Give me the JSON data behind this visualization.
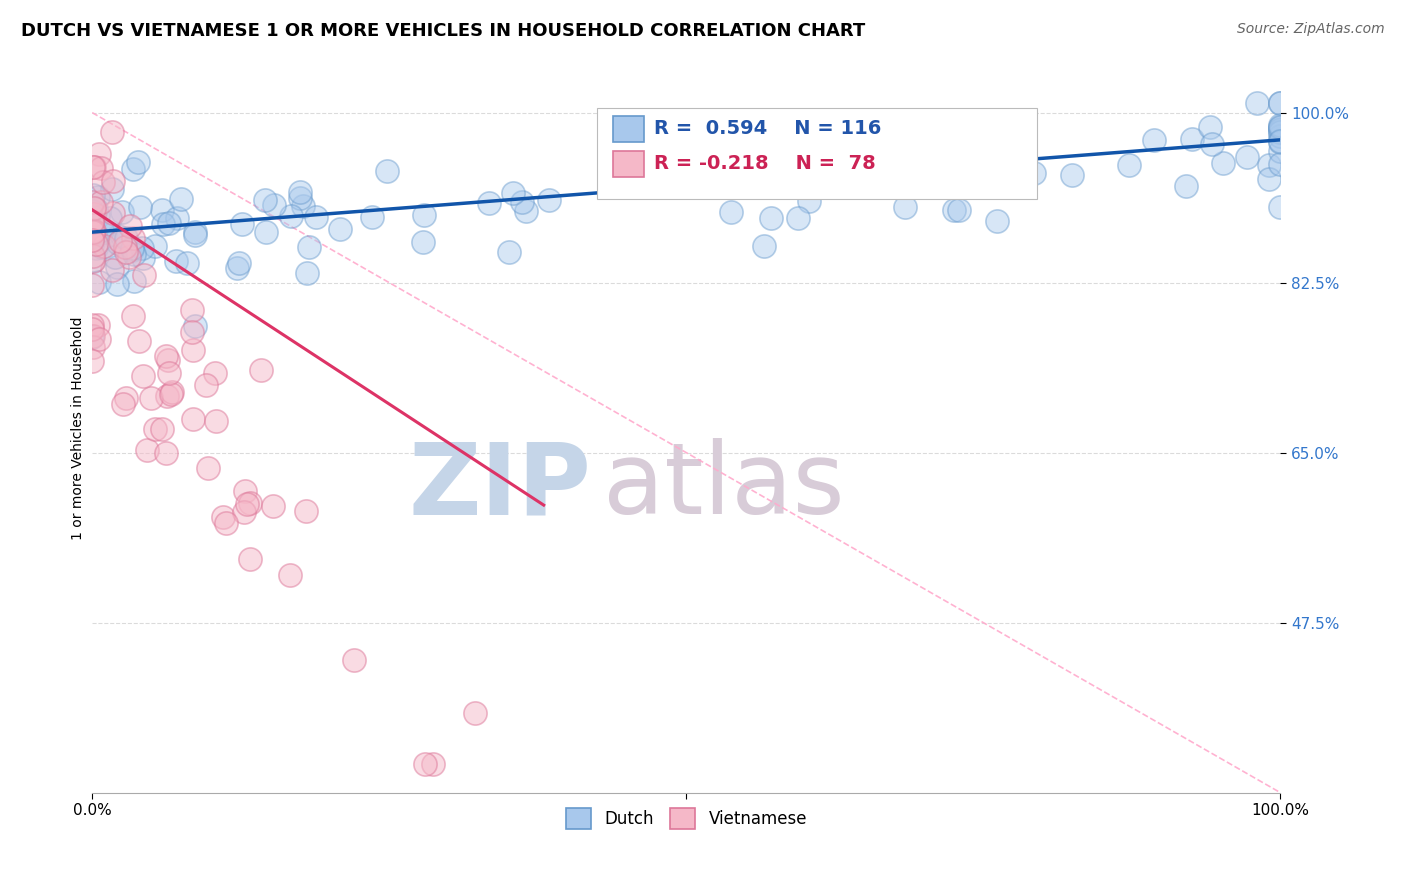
{
  "title": "DUTCH VS VIETNAMESE 1 OR MORE VEHICLES IN HOUSEHOLD CORRELATION CHART",
  "source": "Source: ZipAtlas.com",
  "ylabel": "1 or more Vehicles in Household",
  "xlim": [
    0.0,
    1.0
  ],
  "ylim": [
    0.3,
    1.05
  ],
  "yticks": [
    0.475,
    0.65,
    0.825,
    1.0
  ],
  "ytick_labels": [
    "47.5%",
    "65.0%",
    "82.5%",
    "100.0%"
  ],
  "dutch_color": "#A8C8EC",
  "dutch_edge_color": "#6699CC",
  "viet_color": "#F5B8C8",
  "viet_edge_color": "#DD7799",
  "dutch_line_color": "#1155AA",
  "viet_line_color": "#DD3366",
  "diag_color": "#FFAACC",
  "watermark_zip": "ZIP",
  "watermark_atlas": "atlas",
  "watermark_color": "#D0DCF0",
  "watermark_atlas_color": "#D0C8D8",
  "background_color": "#FFFFFF",
  "grid_color": "#CCCCCC",
  "title_fontsize": 13,
  "source_fontsize": 10,
  "axis_label_fontsize": 10,
  "tick_fontsize": 11,
  "legend_fontsize": 14
}
